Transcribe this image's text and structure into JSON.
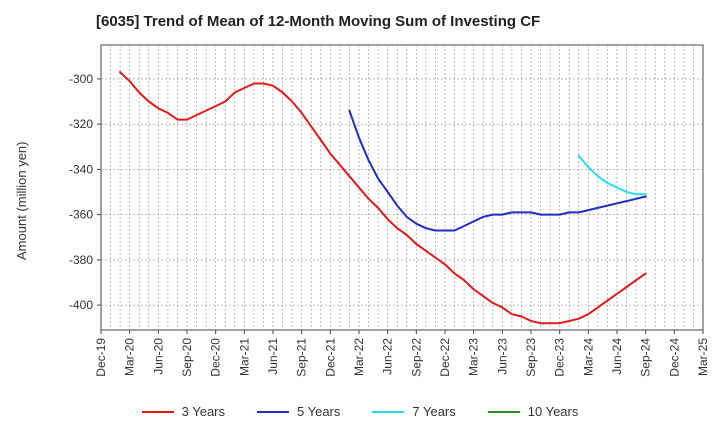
{
  "title": "[6035]  Trend of Mean of 12-Month Moving Sum of Investing CF",
  "chart_data": {
    "type": "line",
    "title": "[6035]  Trend of Mean of 12-Month Moving Sum of Investing CF",
    "xlabel": "",
    "ylabel": "Amount (million yen)",
    "x_ticks": [
      "Dec-19",
      "Mar-20",
      "Jun-20",
      "Sep-20",
      "Dec-20",
      "Mar-21",
      "Jun-21",
      "Sep-21",
      "Dec-21",
      "Mar-22",
      "Jun-22",
      "Sep-22",
      "Dec-22",
      "Mar-23",
      "Jun-23",
      "Sep-23",
      "Dec-23",
      "Mar-24",
      "Jun-24",
      "Sep-24",
      "Dec-24",
      "Mar-25"
    ],
    "y_ticks": [
      -300,
      -320,
      -340,
      -360,
      -380,
      -400
    ],
    "ylim": [
      -411,
      -285
    ],
    "grid": true,
    "legend_position": "bottom",
    "series": [
      {
        "name": "3 Years",
        "color": "#e31a1c",
        "points": [
          [
            "Feb-20",
            -297
          ],
          [
            "Mar-20",
            -301
          ],
          [
            "Apr-20",
            -306
          ],
          [
            "May-20",
            -310
          ],
          [
            "Jun-20",
            -313
          ],
          [
            "Jul-20",
            -315
          ],
          [
            "Aug-20",
            -318
          ],
          [
            "Sep-20",
            -318
          ],
          [
            "Oct-20",
            -316
          ],
          [
            "Nov-20",
            -314
          ],
          [
            "Dec-20",
            -312
          ],
          [
            "Jan-21",
            -310
          ],
          [
            "Feb-21",
            -306
          ],
          [
            "Mar-21",
            -304
          ],
          [
            "Apr-21",
            -302
          ],
          [
            "May-21",
            -302
          ],
          [
            "Jun-21",
            -303
          ],
          [
            "Jul-21",
            -306
          ],
          [
            "Aug-21",
            -310
          ],
          [
            "Sep-21",
            -315
          ],
          [
            "Oct-21",
            -321
          ],
          [
            "Nov-21",
            -327
          ],
          [
            "Dec-21",
            -333
          ],
          [
            "Jan-22",
            -338
          ],
          [
            "Feb-22",
            -343
          ],
          [
            "Mar-22",
            -348
          ],
          [
            "Apr-22",
            -353
          ],
          [
            "May-22",
            -357
          ],
          [
            "Jun-22",
            -362
          ],
          [
            "Jul-22",
            -366
          ],
          [
            "Aug-22",
            -369
          ],
          [
            "Sep-22",
            -373
          ],
          [
            "Oct-22",
            -376
          ],
          [
            "Nov-22",
            -379
          ],
          [
            "Dec-22",
            -382
          ],
          [
            "Jan-23",
            -386
          ],
          [
            "Feb-23",
            -389
          ],
          [
            "Mar-23",
            -393
          ],
          [
            "Apr-23",
            -396
          ],
          [
            "May-23",
            -399
          ],
          [
            "Jun-23",
            -401
          ],
          [
            "Jul-23",
            -404
          ],
          [
            "Aug-23",
            -405
          ],
          [
            "Sep-23",
            -407
          ],
          [
            "Oct-23",
            -408
          ],
          [
            "Nov-23",
            -408
          ],
          [
            "Dec-23",
            -408
          ],
          [
            "Jan-24",
            -407
          ],
          [
            "Feb-24",
            -406
          ],
          [
            "Mar-24",
            -404
          ],
          [
            "Apr-24",
            -401
          ],
          [
            "May-24",
            -398
          ],
          [
            "Jun-24",
            -395
          ],
          [
            "Jul-24",
            -392
          ],
          [
            "Aug-24",
            -389
          ],
          [
            "Sep-24",
            -386
          ]
        ]
      },
      {
        "name": "5 Years",
        "color": "#1f2fc0",
        "points": [
          [
            "Feb-22",
            -314
          ],
          [
            "Mar-22",
            -326
          ],
          [
            "Apr-22",
            -336
          ],
          [
            "May-22",
            -344
          ],
          [
            "Jun-22",
            -350
          ],
          [
            "Jul-22",
            -356
          ],
          [
            "Aug-22",
            -361
          ],
          [
            "Sep-22",
            -364
          ],
          [
            "Oct-22",
            -366
          ],
          [
            "Nov-22",
            -367
          ],
          [
            "Dec-22",
            -367
          ],
          [
            "Jan-23",
            -367
          ],
          [
            "Feb-23",
            -365
          ],
          [
            "Mar-23",
            -363
          ],
          [
            "Apr-23",
            -361
          ],
          [
            "May-23",
            -360
          ],
          [
            "Jun-23",
            -360
          ],
          [
            "Jul-23",
            -359
          ],
          [
            "Aug-23",
            -359
          ],
          [
            "Sep-23",
            -359
          ],
          [
            "Oct-23",
            -360
          ],
          [
            "Nov-23",
            -360
          ],
          [
            "Dec-23",
            -360
          ],
          [
            "Jan-24",
            -359
          ],
          [
            "Feb-24",
            -359
          ],
          [
            "Mar-24",
            -358
          ],
          [
            "Apr-24",
            -357
          ],
          [
            "May-24",
            -356
          ],
          [
            "Jun-24",
            -355
          ],
          [
            "Jul-24",
            -354
          ],
          [
            "Aug-24",
            -353
          ],
          [
            "Sep-24",
            -352
          ]
        ]
      },
      {
        "name": "7 Years",
        "color": "#22e0f0",
        "points": [
          [
            "Feb-24",
            -334
          ],
          [
            "Mar-24",
            -339
          ],
          [
            "Apr-24",
            -343
          ],
          [
            "May-24",
            -346
          ],
          [
            "Jun-24",
            -348
          ],
          [
            "Jul-24",
            -350
          ],
          [
            "Aug-24",
            -351
          ],
          [
            "Sep-24",
            -351
          ]
        ]
      },
      {
        "name": "10 Years",
        "color": "#2a8a2a",
        "points": []
      }
    ]
  }
}
